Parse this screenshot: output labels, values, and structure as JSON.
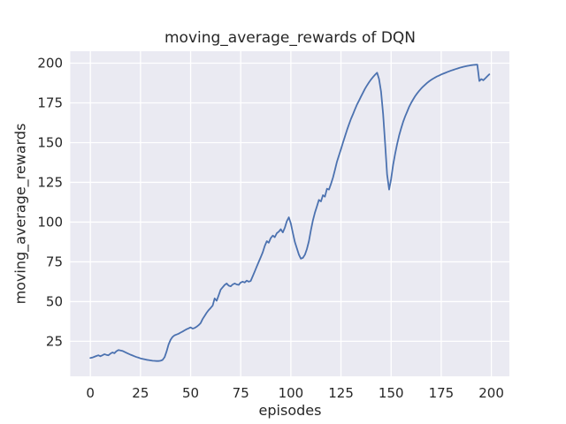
{
  "chart_data": {
    "type": "line",
    "title": "moving_average_rewards of DQN",
    "xlabel": "episodes",
    "ylabel": "moving_average_rewards",
    "x_ticks": [
      0,
      25,
      50,
      75,
      100,
      125,
      150,
      175,
      200
    ],
    "y_ticks": [
      25,
      50,
      75,
      100,
      125,
      150,
      175,
      200
    ],
    "xlim": [
      -10,
      209
    ],
    "ylim": [
      3.0,
      207.5
    ],
    "grid": true,
    "legend_position": "none",
    "theme": {
      "figure_background": "#ffffff",
      "axes_background": "#eaeaf2",
      "gridline_color": "#ffffff",
      "text_color": "#262626",
      "line_color": "#4c72b0"
    },
    "series": [
      {
        "name": "moving_average_rewards",
        "x_start": 0,
        "x_step": 1,
        "values": [
          14.5,
          14.8,
          15.3,
          15.8,
          16.2,
          15.6,
          16.2,
          16.9,
          16.5,
          16.2,
          17.2,
          18.0,
          17.5,
          18.8,
          19.5,
          19.3,
          19.0,
          18.4,
          17.8,
          17.2,
          16.6,
          16.1,
          15.6,
          15.1,
          14.7,
          14.3,
          14.0,
          13.7,
          13.4,
          13.2,
          13.0,
          12.8,
          12.7,
          12.6,
          12.6,
          12.8,
          13.3,
          15.0,
          18.5,
          23.0,
          26.0,
          27.8,
          28.8,
          29.3,
          29.8,
          30.5,
          31.2,
          31.9,
          32.6,
          33.2,
          33.8,
          33.0,
          33.4,
          34.2,
          35.2,
          36.5,
          39.0,
          41.0,
          43.0,
          44.6,
          46.0,
          47.5,
          52.0,
          50.5,
          54.0,
          57.5,
          59.0,
          60.5,
          61.4,
          60.0,
          59.6,
          60.8,
          61.4,
          60.8,
          60.5,
          62.0,
          62.5,
          62.0,
          63.2,
          62.5,
          63.0,
          66.0,
          69.0,
          72.0,
          75.0,
          78.0,
          81.0,
          85.0,
          88.0,
          87.0,
          90.0,
          91.5,
          90.5,
          93.0,
          94.0,
          95.5,
          93.5,
          96.5,
          100.5,
          103.0,
          99.0,
          93.0,
          87.5,
          83.5,
          79.5,
          77.0,
          77.5,
          79.5,
          83.0,
          88.0,
          95.0,
          101.0,
          106.0,
          110.0,
          114.0,
          113.0,
          117.0,
          116.0,
          121.0,
          120.5,
          124.0,
          128.0,
          133.0,
          138.0,
          142.0,
          146.0,
          150.0,
          154.0,
          158.0,
          161.5,
          165.0,
          168.0,
          171.0,
          174.0,
          176.5,
          179.0,
          181.5,
          184.0,
          186.0,
          188.0,
          189.8,
          191.3,
          192.7,
          194.0,
          190.0,
          182.0,
          168.0,
          150.0,
          130.0,
          120.5,
          127.0,
          136.0,
          143.0,
          149.0,
          154.5,
          159.0,
          163.0,
          166.5,
          169.5,
          172.5,
          175.0,
          177.2,
          179.2,
          181.0,
          182.6,
          184.0,
          185.3,
          186.5,
          187.6,
          188.6,
          189.5,
          190.3,
          191.0,
          191.7,
          192.3,
          192.9,
          193.4,
          193.9,
          194.4,
          194.9,
          195.4,
          195.8,
          196.2,
          196.6,
          197.0,
          197.4,
          197.7,
          198.0,
          198.3,
          198.5,
          198.7,
          198.9,
          199.0,
          199.1,
          188.8,
          190.0,
          189.2,
          190.5,
          191.8,
          193.0
        ]
      }
    ]
  }
}
